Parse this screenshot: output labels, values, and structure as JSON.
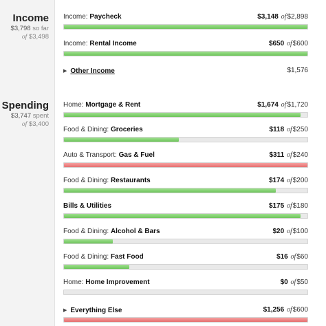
{
  "income": {
    "title": "Income",
    "so_far_amount": "$3,798",
    "so_far_label": "so far",
    "of_label": "of",
    "budget": "$3,498",
    "rows": [
      {
        "category": "Income:",
        "name": "Paycheck",
        "spent": "$3,148",
        "of": "of",
        "budget": "$2,898",
        "progress": 1.0,
        "color": "#7dcc6a"
      },
      {
        "category": "Income:",
        "name": "Rental Income",
        "spent": "$650",
        "of": "of",
        "budget": "$600",
        "progress": 1.0,
        "color": "#7dcc6a"
      }
    ],
    "other": {
      "label": "Other Income",
      "amount": "$1,576"
    }
  },
  "spending": {
    "title": "Spending",
    "spent_amount": "$3,747",
    "spent_label": "spent",
    "of_label": "of",
    "budget": "$3,400",
    "rows": [
      {
        "category": "Home:",
        "name": "Mortgage & Rent",
        "spent": "$1,674",
        "of": "of",
        "budget": "$1,720",
        "progress": 0.973,
        "color": "#7dcc6a"
      },
      {
        "category": "Food & Dining:",
        "name": "Groceries",
        "spent": "$118",
        "of": "of",
        "budget": "$250",
        "progress": 0.472,
        "color": "#7dcc6a"
      },
      {
        "category": "Auto & Transport:",
        "name": "Gas & Fuel",
        "spent": "$311",
        "of": "of",
        "budget": "$240",
        "progress": 1.0,
        "color": "#e56f6f"
      },
      {
        "category": "Food & Dining:",
        "name": "Restaurants",
        "spent": "$174",
        "of": "of",
        "budget": "$200",
        "progress": 0.87,
        "color": "#7dcc6a"
      },
      {
        "category": "",
        "name": "Bills & Utilities",
        "spent": "$175",
        "of": "of",
        "budget": "$180",
        "progress": 0.972,
        "color": "#7dcc6a"
      },
      {
        "category": "Food & Dining:",
        "name": "Alcohol & Bars",
        "spent": "$20",
        "of": "of",
        "budget": "$100",
        "progress": 0.2,
        "color": "#7dcc6a"
      },
      {
        "category": "Food & Dining:",
        "name": "Fast Food",
        "spent": "$16",
        "of": "of",
        "budget": "$60",
        "progress": 0.267,
        "color": "#7dcc6a"
      },
      {
        "category": "Home:",
        "name": "Home Improvement",
        "spent": "$0",
        "of": "of",
        "budget": "$50",
        "progress": 0.0,
        "color": "#7dcc6a"
      }
    ],
    "everything_else": {
      "label": "Everything Else",
      "spent": "$1,256",
      "of": "of",
      "budget": "$600",
      "progress": 1.0,
      "color": "#e56f6f"
    }
  }
}
